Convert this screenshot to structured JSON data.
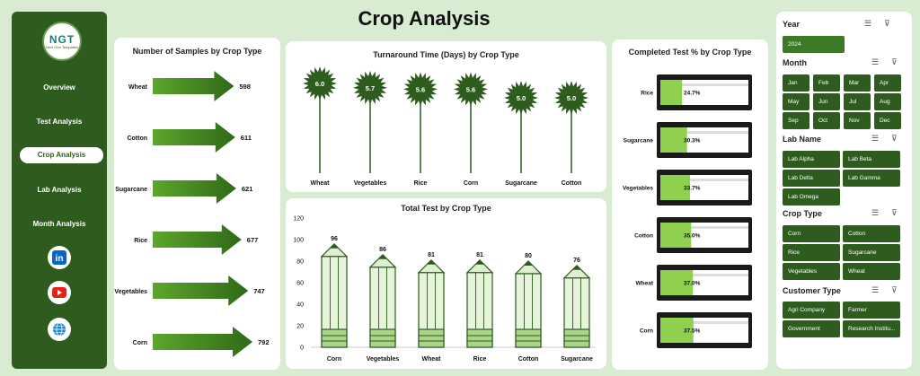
{
  "title": "Crop Analysis",
  "logo": {
    "text": "NGT",
    "sub": "Next Gen Templates"
  },
  "nav": [
    {
      "label": "Overview",
      "active": false
    },
    {
      "label": "Test Analysis",
      "active": false
    },
    {
      "label": "Crop Analysis",
      "active": true
    },
    {
      "label": "Lab Analysis",
      "active": false
    },
    {
      "label": "Month Analysis",
      "active": false
    }
  ],
  "social": [
    {
      "icon": "linkedin-icon"
    },
    {
      "icon": "youtube-icon"
    },
    {
      "icon": "globe-icon"
    }
  ],
  "colors": {
    "dark_green": "#2e5c1e",
    "light_green": "#8fd14f",
    "background": "#d7ecd0"
  },
  "charts": {
    "samples": {
      "title": "Number of Samples by Crop Type"
    },
    "turnaround": {
      "title": "Turnaround Time (Days) by Crop Type"
    },
    "total": {
      "title": "Total Test by Crop Type"
    },
    "completed": {
      "title": "Completed Test % by Crop Type"
    }
  },
  "chart_data": [
    {
      "type": "bar",
      "title": "Number of Samples by Crop Type",
      "orientation": "horizontal",
      "categories": [
        "Wheat",
        "Cotton",
        "Sugarcane",
        "Rice",
        "Vegetables",
        "Corn"
      ],
      "values": [
        598,
        611,
        621,
        677,
        747,
        792
      ]
    },
    {
      "type": "bar",
      "title": "Turnaround Time (Days) by Crop Type",
      "style": "lollipop",
      "categories": [
        "Wheat",
        "Vegetables",
        "Rice",
        "Corn",
        "Sugarcane",
        "Cotton"
      ],
      "values": [
        6.0,
        5.7,
        5.6,
        5.6,
        5.0,
        5.0
      ]
    },
    {
      "type": "bar",
      "title": "Total Test by Crop Type",
      "style": "pencil",
      "categories": [
        "Corn",
        "Vegetables",
        "Wheat",
        "Rice",
        "Cotton",
        "Sugarcane"
      ],
      "values": [
        96,
        86,
        81,
        81,
        80,
        76
      ],
      "ylim": [
        0,
        120
      ],
      "yticks": [
        "120",
        "100",
        "80",
        "60",
        "40",
        "20",
        "0"
      ]
    },
    {
      "type": "bar",
      "title": "Completed Test % by Crop Type",
      "style": "battery",
      "categories": [
        "Rice",
        "Sugarcane",
        "Vegetables",
        "Cotton",
        "Wheat",
        "Corn"
      ],
      "values": [
        24.7,
        30.3,
        33.7,
        35.0,
        37.0,
        37.5
      ],
      "labels": [
        "24.7%",
        "30.3%",
        "33.7%",
        "35.0%",
        "37.0%",
        "37.5%"
      ]
    }
  ],
  "filters": {
    "year": {
      "title": "Year",
      "items": [
        "2024"
      ]
    },
    "month": {
      "title": "Month",
      "items": [
        "Jan",
        "Feb",
        "Mar",
        "Apr",
        "May",
        "Jun",
        "Jul",
        "Aug",
        "Sep",
        "Oct",
        "Nov",
        "Dec"
      ]
    },
    "lab": {
      "title": "Lab Name",
      "items": [
        "Lab Alpha",
        "Lab Beta",
        "Lab Delta",
        "Lab Gamma",
        "Lab Omega"
      ]
    },
    "crop": {
      "title": "Crop Type",
      "items": [
        "Corn",
        "Cotton",
        "Rice",
        "Sugarcane",
        "Vegetables",
        "Wheat"
      ]
    },
    "customer": {
      "title": "Customer Type",
      "items": [
        "Agri Company",
        "Farmer",
        "Government",
        "Research Institu..."
      ]
    }
  }
}
